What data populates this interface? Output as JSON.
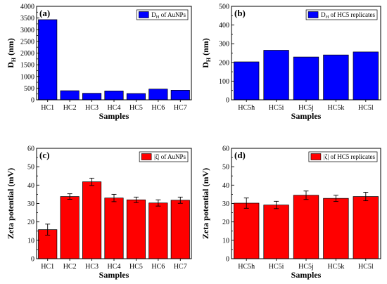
{
  "colors": {
    "blue": "#0000ff",
    "red": "#ff0000",
    "axis": "#000000"
  },
  "chart_data": [
    {
      "id": "a",
      "type": "bar",
      "panel_label": "(a)",
      "categories": [
        "HC1",
        "HC2",
        "HC3",
        "HC4",
        "HC5",
        "HC6",
        "HC7"
      ],
      "values": [
        3430,
        390,
        280,
        380,
        270,
        460,
        410
      ],
      "error_bars": null,
      "ylim": [
        0,
        4000
      ],
      "yticks": [
        0,
        500,
        1000,
        1500,
        2000,
        2500,
        3000,
        3500,
        4000
      ],
      "xlabel": "Samples",
      "ylabel": {
        "main": "D",
        "sub": "H",
        "unit": " (nm)"
      },
      "legend": {
        "main": "D",
        "sub": "H",
        "rest": " of AuNPs",
        "position": "top-right"
      },
      "color": "#0000ff"
    },
    {
      "id": "b",
      "type": "bar",
      "panel_label": "(b)",
      "categories": [
        "HC5h",
        "HC5i",
        "HC5j",
        "HC5k",
        "HC5l"
      ],
      "values": [
        203,
        265,
        229,
        240,
        256
      ],
      "error_bars": null,
      "ylim": [
        0,
        500
      ],
      "yticks": [
        0,
        100,
        200,
        300,
        400,
        500
      ],
      "xlabel": "Samples",
      "ylabel": {
        "main": "D",
        "sub": "H",
        "unit": " (nm)"
      },
      "legend": {
        "main": "D",
        "sub": "H",
        "rest": " of HC5 replicates",
        "position": "top-right"
      },
      "color": "#0000ff"
    },
    {
      "id": "c",
      "type": "bar",
      "panel_label": "(c)",
      "categories": [
        "HC1",
        "HC2",
        "HC3",
        "HC4",
        "HC5",
        "HC6",
        "HC7"
      ],
      "values": [
        15.8,
        33.8,
        41.8,
        33.0,
        32.0,
        30.3,
        31.8
      ],
      "error_bars": [
        3.0,
        1.5,
        2.0,
        2.0,
        1.5,
        1.7,
        1.7
      ],
      "ylim": [
        0,
        60
      ],
      "yticks": [
        0,
        10,
        20,
        30,
        40,
        50,
        60
      ],
      "xlabel": "Samples",
      "ylabel": {
        "main": "Zeta potential (mV)",
        "sub": "",
        "unit": ""
      },
      "legend": {
        "main": "|ζ|",
        "sub": "",
        "rest": " of AuNPs",
        "position": "top-right"
      },
      "color": "#ff0000"
    },
    {
      "id": "d",
      "type": "bar",
      "panel_label": "(d)",
      "categories": [
        "HC5h",
        "HC5i",
        "HC5j",
        "HC5k",
        "HC5l"
      ],
      "values": [
        30.2,
        29.2,
        34.5,
        32.8,
        33.8
      ],
      "error_bars": [
        2.8,
        2.0,
        2.3,
        1.7,
        2.3
      ],
      "ylim": [
        0,
        60
      ],
      "yticks": [
        0,
        10,
        20,
        30,
        40,
        50,
        60
      ],
      "xlabel": "Samples",
      "ylabel": {
        "main": "Zeta potential (mV)",
        "sub": "",
        "unit": ""
      },
      "legend": {
        "main": "|ζ|",
        "sub": "",
        "rest": " of HC5 replicates",
        "position": "top-right"
      },
      "color": "#ff0000"
    }
  ]
}
